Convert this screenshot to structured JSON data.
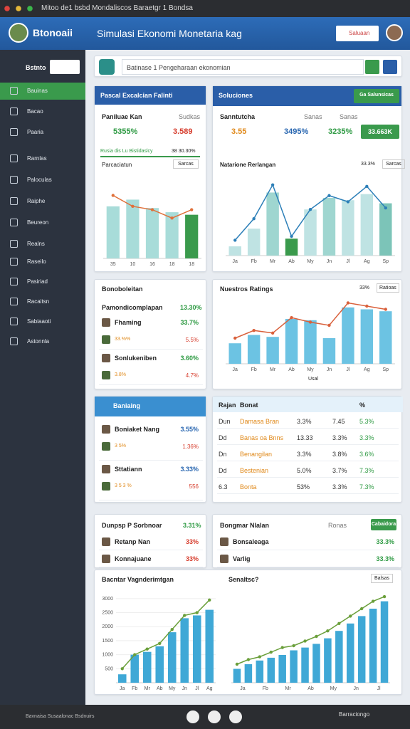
{
  "browser": {
    "title": "Mitoo de1 bsbd Mondaliscos Baraetgr 1 Bondsa"
  },
  "header": {
    "logo": "Btonoaii",
    "title": "Simulasi Ekonomi Monetaria kag",
    "button": "Saluaan"
  },
  "sidebar": {
    "label": "Bstnto",
    "items": [
      "Bauinas",
      "Bacao",
      "Paaria",
      "Rarnlas",
      "Paloculas",
      "Raiphe",
      "Beureon",
      "Realns",
      "Raseilo",
      "Pasiriad",
      "Racaitsn",
      "Sabiaaoti",
      "Astonnla"
    ]
  },
  "search": {
    "placeholder": "Batinase 1 Pengeharaan ekonomian"
  },
  "panel_a": {
    "header": "Pascal Excalcian Falinti",
    "label": "Paniluae Kan",
    "sub": "Sudkas",
    "stats": [
      "5355%",
      "3.589"
    ],
    "progress": "Rusia dis Lu Bistidaslcy",
    "progress_value": "38 30.30%",
    "chart_title": "Parcaciatun",
    "chart_button": "Sarcas",
    "chart": {
      "type": "bar_line",
      "categories": [
        "35",
        "10",
        "16",
        "18",
        "18"
      ],
      "ylim": [
        0,
        100
      ],
      "series": [
        {
          "kind": "bar",
          "colors": [
            "#a8dcd9",
            "#a8dcd9",
            "#a8dcd9",
            "#a8dcd9",
            "#3a9a4c"
          ],
          "values": [
            62,
            70,
            60,
            55,
            52
          ]
        },
        {
          "kind": "line",
          "color": "#e0703a",
          "values": [
            75,
            62,
            58,
            48,
            58
          ]
        }
      ]
    }
  },
  "panel_b": {
    "header": "Soluciones",
    "button": "Ga Salunsicas",
    "label": "Sanntutcha",
    "subs": [
      "Sanas",
      "Sanas"
    ],
    "stats": [
      "3.55",
      "3495%",
      "3235%"
    ],
    "stat_button": "33.663K",
    "chart_title": "Natarione Rerlangan",
    "chart_value": "33.3%",
    "chart_button": "Sarcas",
    "chart": {
      "type": "bar_line",
      "categories": [
        "Ja",
        "Fb",
        "Mr",
        "Ab",
        "My",
        "Jn",
        "Jl",
        "Ag",
        "Sp"
      ],
      "ylim": [
        0,
        100
      ],
      "series": [
        {
          "kind": "bar",
          "colors": [
            "#bfe3e3",
            "#bfe3e3",
            "#9fd6d0",
            "#3a9a4c",
            "#bfe3e3",
            "#9fd6d0",
            "#bfe3e3",
            "#bfe3e3",
            "#7cc4b8"
          ],
          "values": [
            12,
            35,
            82,
            22,
            60,
            75,
            72,
            80,
            68
          ]
        },
        {
          "kind": "line",
          "color": "#2c7fb8",
          "values": [
            20,
            48,
            92,
            25,
            60,
            78,
            70,
            90,
            62
          ]
        }
      ]
    }
  },
  "panel_c": {
    "title": "Bonoboleitan",
    "sub": "Pamondicomplapan",
    "sub_value": "13.30%",
    "items": [
      {
        "name": "Fhaming",
        "value": "33.7%",
        "detail": "33.%%",
        "detail_value": "5.5%"
      },
      {
        "name": "Sonlukeniben",
        "value": "3.60%",
        "detail": "3.8%",
        "detail_value": "4.7%"
      }
    ]
  },
  "panel_d": {
    "title": "Nuestros Ratings",
    "value": "33%",
    "button": "Ratioas",
    "legend": "Usal",
    "chart": {
      "type": "bar_line",
      "categories": [
        "Ja",
        "Fb",
        "Mr",
        "Ab",
        "My",
        "Jn",
        "Jl",
        "Ag",
        "Sp"
      ],
      "ylim": [
        0,
        100
      ],
      "series": [
        {
          "kind": "bar",
          "colors": [
            "#6cc3e3",
            "#6cc3e3",
            "#6cc3e3",
            "#6cc3e3",
            "#6cc3e3",
            "#6cc3e3",
            "#6cc3e3",
            "#6cc3e3",
            "#6cc3e3"
          ],
          "values": [
            32,
            45,
            42,
            70,
            68,
            40,
            88,
            85,
            82
          ]
        },
        {
          "kind": "line",
          "color": "#d9603b",
          "values": [
            40,
            52,
            48,
            72,
            65,
            60,
            95,
            90,
            85
          ]
        }
      ]
    }
  },
  "panel_e": {
    "header": "Baniaing",
    "items": [
      {
        "name": "Boniaket Nang",
        "value": "3.55%",
        "detail": "3 5%",
        "detail_value": "1.36%"
      },
      {
        "name": "Sttatiann",
        "value": "3.33%",
        "detail": "3 5 3 %",
        "detail_value": "556"
      }
    ]
  },
  "panel_f": {
    "header": [
      "Rajan",
      "Bonat",
      "",
      "",
      "%"
    ],
    "rows": [
      [
        "Dun",
        "Damasa Bran",
        "3.3%",
        "7.45",
        "5.3%"
      ],
      [
        "Dd",
        "Banas oa Bnns",
        "13.33",
        "3.3%",
        "3.3%"
      ],
      [
        "Dn",
        "Benangilan",
        "3.3%",
        "3.8%",
        "3.6%"
      ],
      [
        "Dd",
        "Bestenian",
        "5.0%",
        "3.7%",
        "7.3%"
      ],
      [
        "6.3",
        "Bonta",
        "53%",
        "3.3%",
        "7.3%"
      ]
    ]
  },
  "panel_g": {
    "title": "Dunpsp P Sorbnoar",
    "value": "3.31%",
    "items": [
      {
        "name": "Retanp Nan",
        "value": "33%"
      },
      {
        "name": "Konnajuane",
        "value": "33%"
      }
    ]
  },
  "panel_h": {
    "title": "Bongmar Nlalan",
    "sub": "Ronas",
    "button": "Cabaidora",
    "items": [
      {
        "name": "Bonsaleaga",
        "value": "33.3%"
      },
      {
        "name": "Varlig",
        "value": "33.3%"
      }
    ]
  },
  "bottom_left": {
    "title": "Bacntar Vagnderimtgan",
    "chart": {
      "type": "bar_line",
      "categories": [
        "Ja",
        "Fb",
        "Mr",
        "Ab",
        "My",
        "Jn",
        "Jl",
        "Ag"
      ],
      "ylim": [
        0,
        3300
      ],
      "yticks": [
        500,
        1000,
        1500,
        2000,
        2500,
        3000
      ],
      "series": [
        {
          "kind": "bar",
          "colors": [
            "#3fa8d6",
            "#3fa8d6",
            "#3fa8d6",
            "#3fa8d6",
            "#3fa8d6",
            "#3fa8d6",
            "#3fa8d6",
            "#3fa8d6"
          ],
          "values": [
            300,
            1000,
            1100,
            1300,
            1800,
            2300,
            2400,
            2600
          ]
        },
        {
          "kind": "line",
          "color": "#6a9f3a",
          "values": [
            500,
            1000,
            1200,
            1400,
            1900,
            2400,
            2500,
            2950
          ]
        }
      ]
    }
  },
  "bottom_right": {
    "title": "Senaltsc?",
    "button": "Balsas",
    "chart": {
      "type": "bar_line",
      "categories": [
        "Ja",
        "Fb",
        "Mr",
        "Ab",
        "My",
        "Jn",
        "Jl"
      ],
      "ylim": [
        0,
        100
      ],
      "series": [
        {
          "kind": "bar",
          "colors": [
            "#3fa8d6",
            "#3fa8d6",
            "#3fa8d6",
            "#3fa8d6",
            "#3fa8d6",
            "#3fa8d6",
            "#3fa8d6",
            "#3fa8d6",
            "#3fa8d6",
            "#3fa8d6",
            "#3fa8d6",
            "#3fa8d6",
            "#3fa8d6",
            "#3fa8d6"
          ],
          "values": [
            15,
            20,
            24,
            27,
            30,
            35,
            38,
            42,
            48,
            56,
            64,
            72,
            80,
            88
          ]
        },
        {
          "kind": "line",
          "color": "#6a9f3a",
          "values": [
            20,
            25,
            28,
            33,
            38,
            40,
            45,
            50,
            56,
            64,
            72,
            80,
            88,
            93
          ]
        }
      ]
    }
  },
  "footer": {
    "text": "Bavnaisa Susaalonac Bsdnuirs",
    "button": "Barraciongo"
  }
}
